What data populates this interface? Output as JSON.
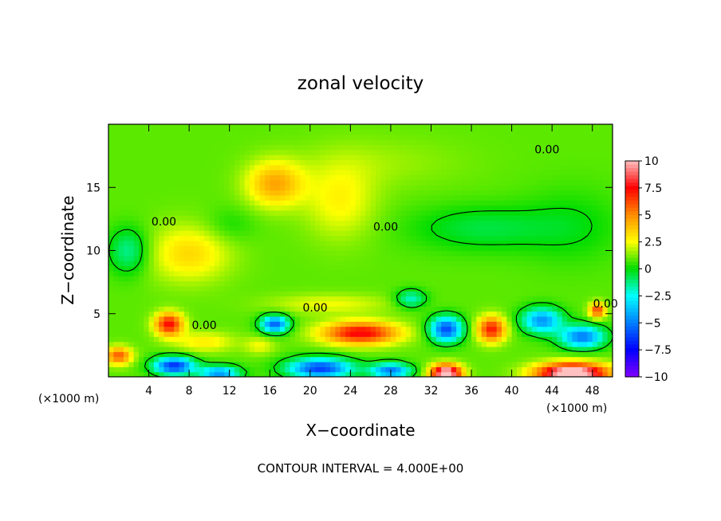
{
  "chart_data": {
    "type": "heatmap",
    "title": "zonal velocity",
    "xlabel": "X−coordinate",
    "ylabel": "Z−coordinate",
    "x_unit": "(×1000 m)",
    "y_unit": "(×1000 m)",
    "xlim": [
      0,
      50
    ],
    "ylim": [
      0,
      20
    ],
    "x_ticks": [
      4,
      8,
      12,
      16,
      20,
      24,
      28,
      32,
      36,
      40,
      44,
      48
    ],
    "x_tick_labels": [
      "4",
      "8",
      "12",
      "16",
      "20",
      "24",
      "28",
      "32",
      "36",
      "40",
      "44",
      "48"
    ],
    "y_ticks": [
      5,
      10,
      15
    ],
    "y_tick_labels": [
      "5",
      "10",
      "15"
    ],
    "colorbar": {
      "min": -10,
      "max": 10,
      "ticks": [
        10,
        7.5,
        5,
        2.5,
        0,
        -2.5,
        -5,
        -7.5,
        -10
      ],
      "tick_labels": [
        "10",
        "7.5",
        "5",
        "2.5",
        "0",
        "−2.5",
        "−5",
        "−7.5",
        "−10"
      ],
      "colors": [
        "#ffc0c0",
        "#ff0000",
        "#ff8c00",
        "#ffff00",
        "#00dd00",
        "#00ffff",
        "#0080ff",
        "#0000ff",
        "#8000ff"
      ]
    },
    "contour_labels": [
      {
        "text": "0.00",
        "x": 43.5,
        "z": 18
      },
      {
        "text": "0.00",
        "x": 5.5,
        "z": 12.3
      },
      {
        "text": "0.00",
        "x": 27.5,
        "z": 11.9
      },
      {
        "text": "0.00",
        "x": 20.5,
        "z": 5.5
      },
      {
        "text": "0.00",
        "x": 9.5,
        "z": 4.1
      },
      {
        "text": "0.00",
        "x": 49.3,
        "z": 5.8
      }
    ],
    "field_blobs": [
      {
        "x": 16.5,
        "z": 15.3,
        "sx": 2.8,
        "sz": 1.8,
        "v": 3.5
      },
      {
        "x": 8,
        "z": 9.8,
        "sx": 4,
        "sz": 2.2,
        "v": 2.4
      },
      {
        "x": 23,
        "z": 14,
        "sx": 3.5,
        "sz": 3,
        "v": 1.8
      },
      {
        "x": 12,
        "z": 12,
        "sx": 2.5,
        "sz": 1.4,
        "v": -0.8
      },
      {
        "x": 2,
        "z": 10,
        "sx": 2,
        "sz": 1.8,
        "v": -2.4
      },
      {
        "x": 37,
        "z": 11.8,
        "sx": 7,
        "sz": 1.8,
        "v": -1.5
      },
      {
        "x": 46,
        "z": 12,
        "sx": 5,
        "sz": 3,
        "v": -0.9
      },
      {
        "x": 27,
        "z": 17,
        "sx": 8,
        "sz": 2,
        "v": 0.6
      },
      {
        "x": 6,
        "z": 4.2,
        "sx": 1.4,
        "sz": 0.9,
        "v": 6.5
      },
      {
        "x": 25,
        "z": 3.5,
        "sx": 3.8,
        "sz": 0.9,
        "v": 6.8
      },
      {
        "x": 38,
        "z": 3.8,
        "sx": 1.4,
        "sz": 1,
        "v": 6.2
      },
      {
        "x": 1,
        "z": 1.7,
        "sx": 1.3,
        "sz": 0.7,
        "v": 5
      },
      {
        "x": 33.5,
        "z": 0.3,
        "sx": 1.5,
        "sz": 0.7,
        "v": 10.5
      },
      {
        "x": 46,
        "z": 0.3,
        "sx": 3.5,
        "sz": 0.8,
        "v": 11
      },
      {
        "x": 48.5,
        "z": 5.3,
        "sx": 0.8,
        "sz": 0.6,
        "v": 5.5
      },
      {
        "x": 6.5,
        "z": 0.9,
        "sx": 2,
        "sz": 0.7,
        "v": -7.5
      },
      {
        "x": 11,
        "z": 0.3,
        "sx": 2,
        "sz": 0.6,
        "v": -5.5
      },
      {
        "x": 21,
        "z": 0.7,
        "sx": 3.2,
        "sz": 0.8,
        "v": -7.2
      },
      {
        "x": 28,
        "z": 0.5,
        "sx": 2,
        "sz": 0.6,
        "v": -6
      },
      {
        "x": 16.5,
        "z": 4.2,
        "sx": 1.4,
        "sz": 0.7,
        "v": -6.5
      },
      {
        "x": 33.5,
        "z": 3.8,
        "sx": 1.6,
        "sz": 1,
        "v": -7
      },
      {
        "x": 43,
        "z": 4.5,
        "sx": 2,
        "sz": 1,
        "v": -5.5
      },
      {
        "x": 47,
        "z": 3.2,
        "sx": 2.2,
        "sz": 0.9,
        "v": -6
      },
      {
        "x": 30,
        "z": 6.2,
        "sx": 1.5,
        "sz": 0.7,
        "v": -3
      },
      {
        "x": 9.5,
        "z": 2.8,
        "sx": 3,
        "sz": 0.8,
        "v": 2
      },
      {
        "x": 22,
        "z": 5.8,
        "sx": 6,
        "sz": 0.8,
        "v": 1.5
      },
      {
        "x": 15,
        "z": 2.5,
        "sx": 1.5,
        "sz": 0.7,
        "v": 1.5
      }
    ],
    "note": "CONTOUR INTERVAL = 4.000E+00"
  }
}
